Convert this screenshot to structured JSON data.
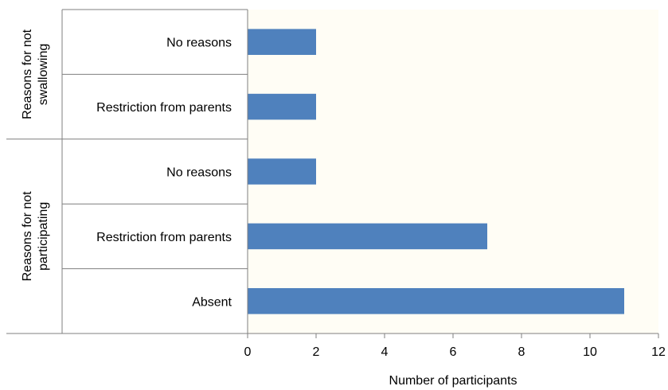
{
  "chart_data": {
    "type": "bar",
    "orientation": "horizontal",
    "xlabel": "Number of participants",
    "xlim": [
      0,
      12
    ],
    "xticks": [
      "0",
      "2",
      "4",
      "6",
      "8",
      "10",
      "12"
    ],
    "groups": [
      {
        "label": "Reasons for not swallowing",
        "label_lines": [
          "Reasons for not",
          "swallowing"
        ],
        "categories": [
          "No reasons",
          "Restriction from parents"
        ],
        "values": [
          2,
          2
        ]
      },
      {
        "label": "Reasons for not participating",
        "label_lines": [
          "Reasons for not",
          "participating"
        ],
        "categories": [
          "No reasons",
          "Restriction from parents",
          "Absent"
        ],
        "values": [
          2,
          7,
          11
        ]
      }
    ],
    "bar_color": "#4f81bd",
    "plot_background": "#fffdf5",
    "grid": false,
    "legend": "none"
  }
}
